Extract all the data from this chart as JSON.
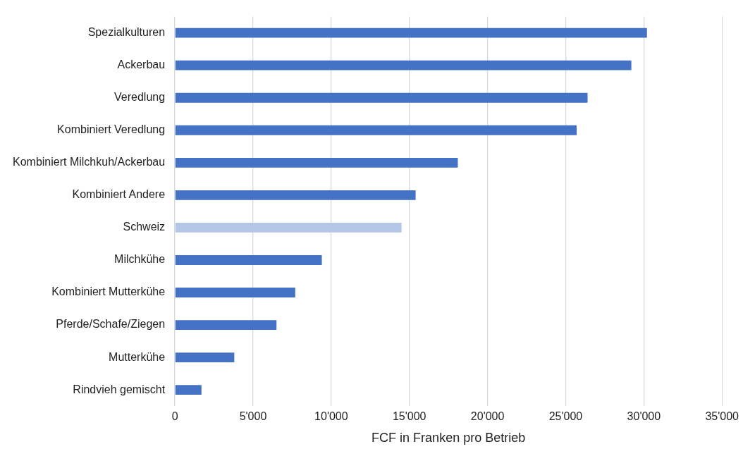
{
  "chart_data": {
    "type": "bar",
    "orientation": "horizontal",
    "xlabel": "FCF in Franken pro Betrieb",
    "categories": [
      "Spezialkulturen",
      "Ackerbau",
      "Veredlung",
      "Kombiniert Veredlung",
      "Kombiniert Milchkuh/Ackerbau",
      "Kombiniert Andere",
      "Schweiz",
      "Milchkühe",
      "Kombiniert Mutterkühe",
      "Pferde/Schafe/Ziegen",
      "Mutterkühe",
      "Rindvieh gemischt"
    ],
    "values": [
      30200,
      29200,
      26400,
      25700,
      18100,
      15400,
      14500,
      9400,
      7700,
      6500,
      3800,
      1700
    ],
    "colors": [
      "#4472c4",
      "#4472c4",
      "#4472c4",
      "#4472c4",
      "#4472c4",
      "#4472c4",
      "#b4c7e7",
      "#4472c4",
      "#4472c4",
      "#4472c4",
      "#4472c4",
      "#4472c4"
    ],
    "xlim": [
      0,
      35000
    ],
    "xticks": [
      {
        "value": 0,
        "label": "0"
      },
      {
        "value": 5000,
        "label": "5'000"
      },
      {
        "value": 10000,
        "label": "10'000"
      },
      {
        "value": 15000,
        "label": "15'000"
      },
      {
        "value": 20000,
        "label": "20'000"
      },
      {
        "value": 25000,
        "label": "25'000"
      },
      {
        "value": 30000,
        "label": "30'000"
      },
      {
        "value": 35000,
        "label": "35'000"
      }
    ],
    "grid": "x"
  }
}
